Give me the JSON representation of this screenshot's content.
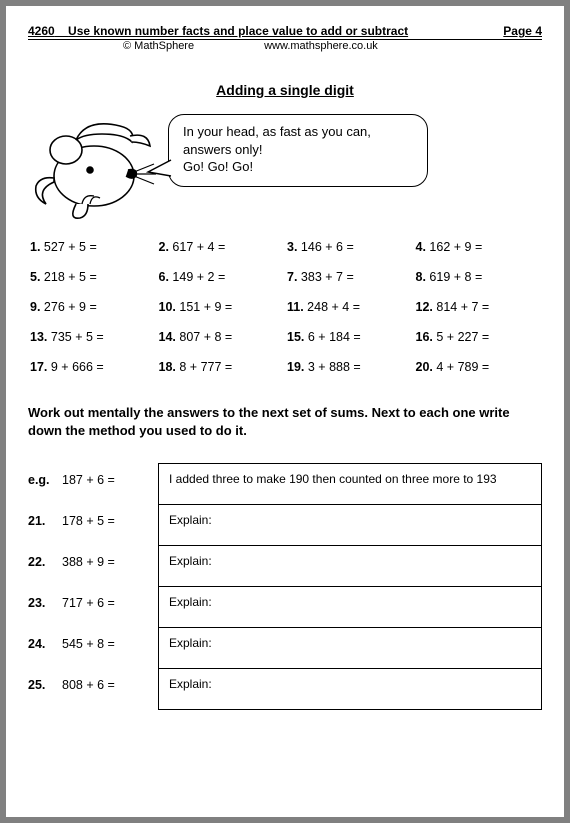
{
  "header": {
    "code": "4260",
    "title": "Use known number facts and place value to add or subtract",
    "page": "Page 4",
    "copyright": "© MathSphere",
    "url": "www.mathsphere.co.uk"
  },
  "section_title": "Adding a single digit",
  "bubble": {
    "line1": "In your head, as fast as you can,",
    "line2": "answers only!",
    "line3": " Go!   Go!   Go!"
  },
  "problems": [
    {
      "n": "1.",
      "q": "527 + 5 ="
    },
    {
      "n": "2.",
      "q": "617 + 4 ="
    },
    {
      "n": "3.",
      "q": "146 + 6 ="
    },
    {
      "n": "4.",
      "q": "162 + 9 ="
    },
    {
      "n": "5.",
      "q": "218 + 5 ="
    },
    {
      "n": "6.",
      "q": "149 + 2 ="
    },
    {
      "n": "7.",
      "q": "383 + 7 ="
    },
    {
      "n": "8.",
      "q": "619 + 8 ="
    },
    {
      "n": "9.",
      "q": "276 + 9 ="
    },
    {
      "n": "10.",
      "q": "151 + 9 ="
    },
    {
      "n": "11.",
      "q": "248 + 4 ="
    },
    {
      "n": "12.",
      "q": "814 + 7 ="
    },
    {
      "n": "13.",
      "q": "735 + 5 ="
    },
    {
      "n": "14.",
      "q": "807 + 8 ="
    },
    {
      "n": "15.",
      "q": "6 + 184 ="
    },
    {
      "n": "16.",
      "q": "5 + 227 ="
    },
    {
      "n": "17.",
      "q": "9 + 666 ="
    },
    {
      "n": "18.",
      "q": "8 + 777 ="
    },
    {
      "n": "19.",
      "q": "3 + 888 ="
    },
    {
      "n": "20.",
      "q": "4 + 789 ="
    }
  ],
  "instruction": "Work out mentally the answers to the next set of sums. Next to each one write down the method you used to do it.",
  "explain_rows": [
    {
      "n": "e.g.",
      "q": "187  +  6  =",
      "box": "I added three to make 190 then counted on three more  to 193"
    },
    {
      "n": "21.",
      "q": "178  +  5  =",
      "box": "Explain:"
    },
    {
      "n": "22.",
      "q": "388  +  9  =",
      "box": "Explain:"
    },
    {
      "n": "23.",
      "q": "717  +  6  =",
      "box": "Explain:"
    },
    {
      "n": "24.",
      "q": "545  +  8  =",
      "box": "Explain:"
    },
    {
      "n": "25.",
      "q": "808  +  6  =",
      "box": "Explain:"
    }
  ],
  "colors": {
    "background": "#ffffff",
    "border": "#000000",
    "page_pad": "#808080"
  }
}
